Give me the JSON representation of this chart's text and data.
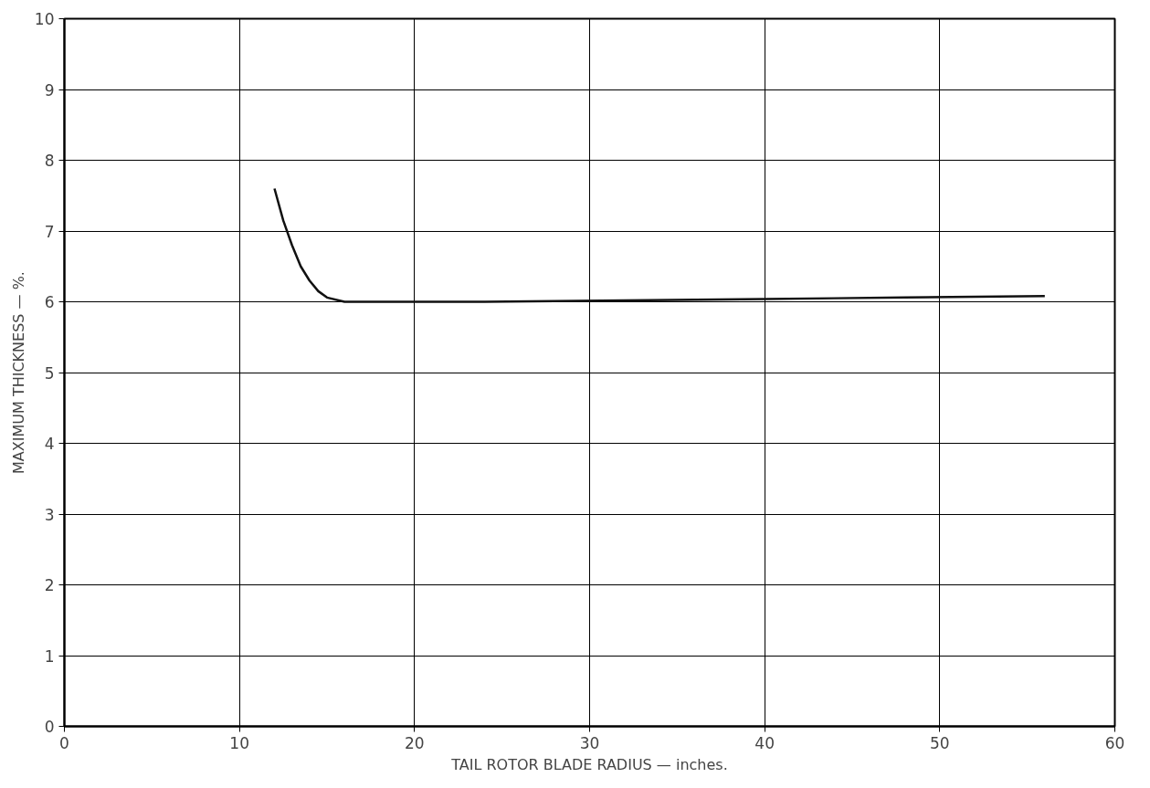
{
  "chart_data": {
    "type": "line",
    "xlabel": "TAIL ROTOR BLADE RADIUS — inches.",
    "ylabel": "MAXIMUM THICKNESS — %.",
    "x": [
      12,
      12.5,
      13,
      13.5,
      14,
      14.5,
      15,
      16,
      20,
      24,
      28,
      32,
      36,
      40,
      44,
      48,
      52,
      56
    ],
    "series": [
      {
        "color": "#111111",
        "values": [
          7.6,
          7.15,
          6.8,
          6.5,
          6.3,
          6.15,
          6.06,
          6.0,
          6.0,
          6.0,
          6.01,
          6.02,
          6.03,
          6.04,
          6.05,
          6.06,
          6.07,
          6.08
        ]
      }
    ],
    "xlim": [
      0,
      60
    ],
    "xticks": [
      0,
      10,
      20,
      30,
      40,
      50,
      60
    ],
    "ylim": [
      0,
      10
    ],
    "yticks": [
      0,
      1,
      2,
      3,
      4,
      5,
      6,
      7,
      8,
      9,
      10
    ],
    "grid": true,
    "line_style": "solid"
  }
}
